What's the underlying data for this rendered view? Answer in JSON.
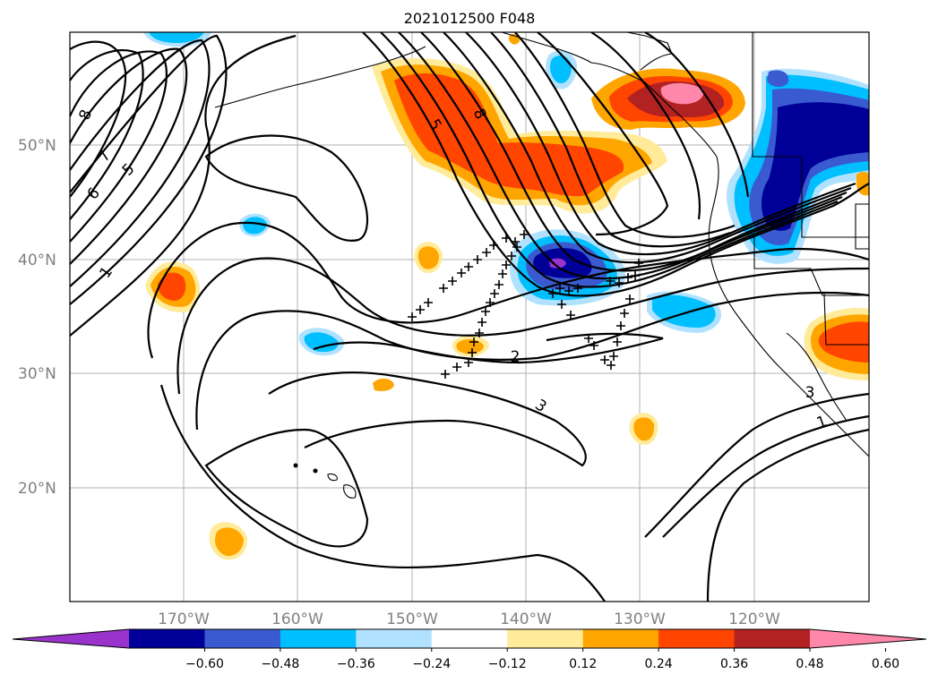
{
  "title": "2021012500 F048",
  "map": {
    "lat_labels": [
      "50°N",
      "40°N",
      "30°N",
      "20°N"
    ],
    "lon_labels": [
      "170°W",
      "160°W",
      "150°W",
      "140°W",
      "130°W",
      "120°W"
    ],
    "grid": true
  },
  "contour_labels": [
    "8",
    "7",
    "6",
    "5",
    "1",
    "5",
    "8",
    "2",
    "3",
    "3",
    "1"
  ],
  "colorbar": {
    "orientation": "horizontal",
    "extend": "both",
    "colors": [
      "#9933cc",
      "#000099",
      "#3a5bd0",
      "#00bfff",
      "#b0e2ff",
      "#ffffff",
      "#ffeb99",
      "#ffa500",
      "#ff4500",
      "#b22222",
      "#ff88aa"
    ],
    "tick_labels": [
      "−0.60",
      "−0.48",
      "−0.36",
      "−0.24",
      "−0.12",
      "0.12",
      "0.24",
      "0.36",
      "0.48",
      "0.60"
    ],
    "tick_values": [
      -0.6,
      -0.48,
      -0.36,
      -0.24,
      -0.12,
      0.12,
      0.24,
      0.36,
      0.48,
      0.6
    ]
  }
}
